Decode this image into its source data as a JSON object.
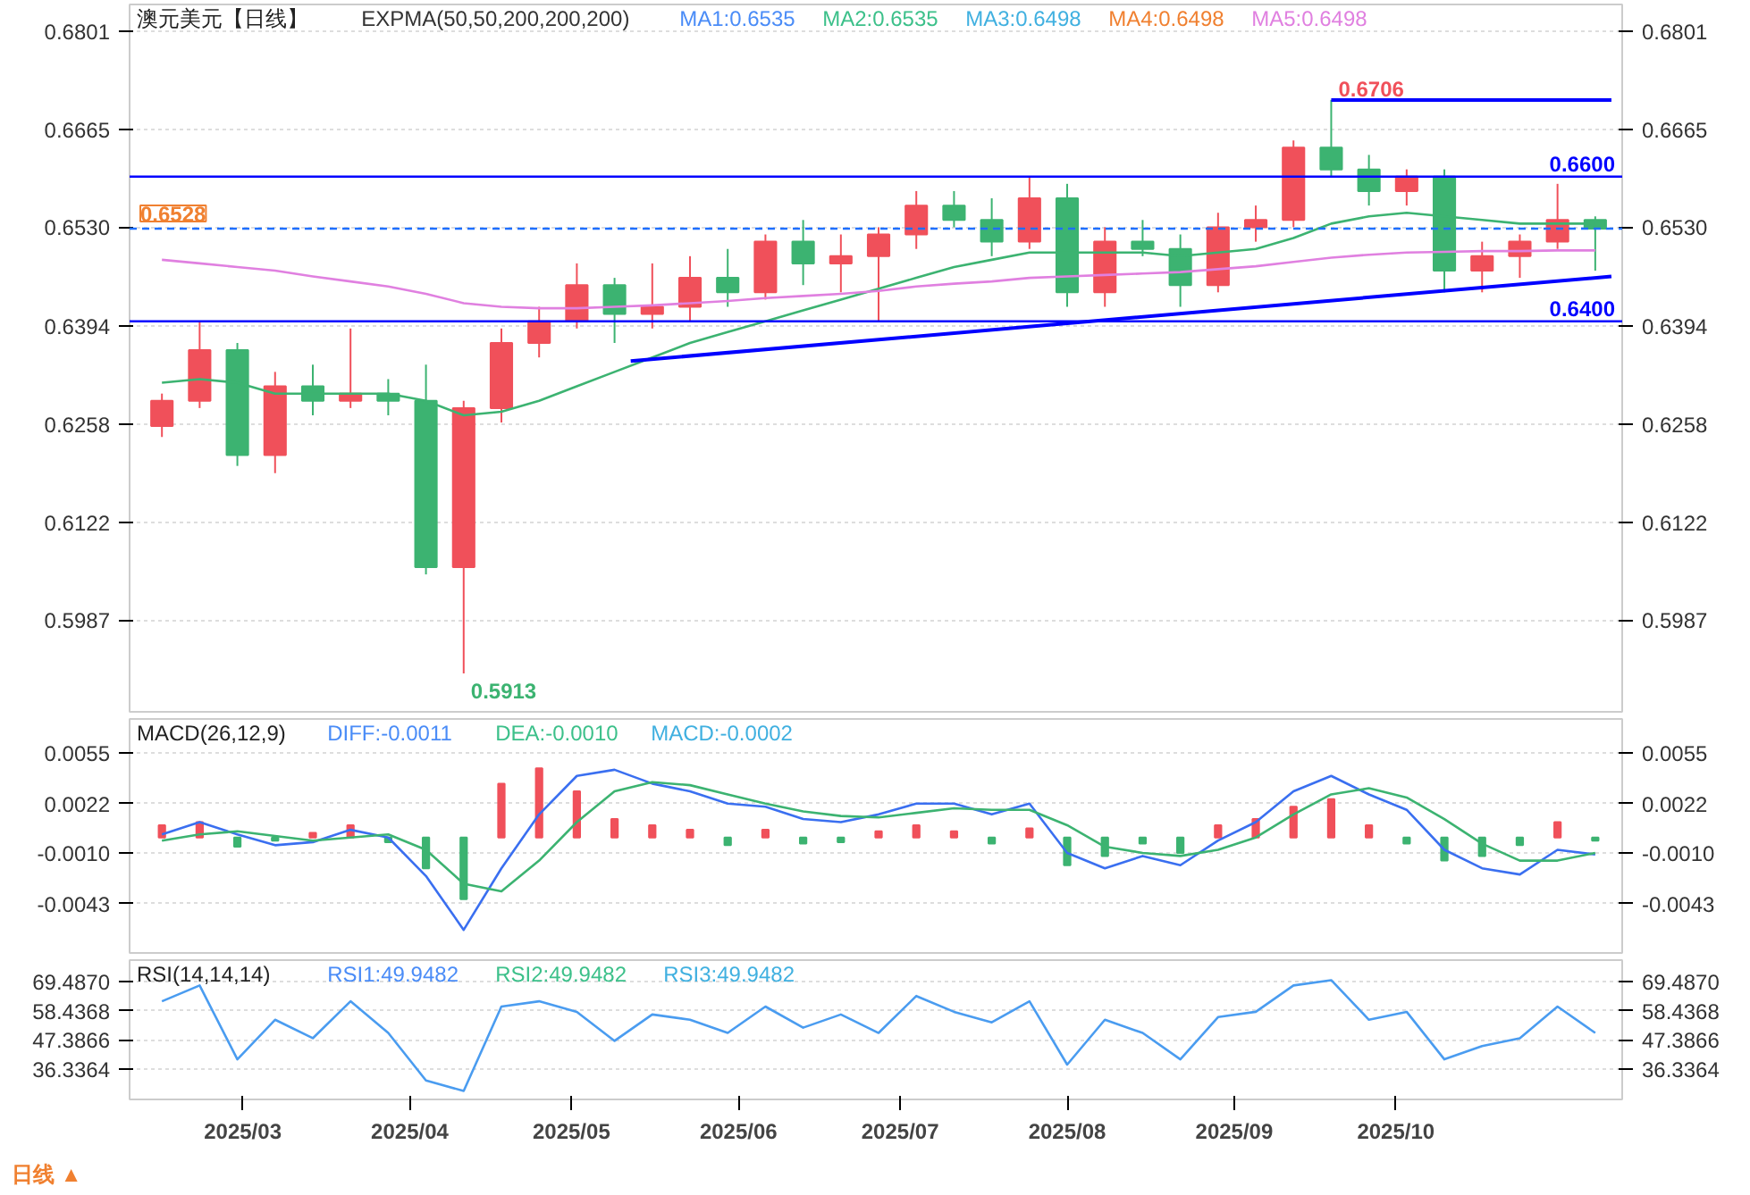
{
  "chart_data": [
    {
      "type": "candlestick",
      "title": "澳元美元【日线】",
      "annotations": [
        "EXPMA(50,50,200,200,200)",
        "MA1:0.6535",
        "MA2:0.6535",
        "MA3:0.6498",
        "MA4:0.6498",
        "MA5:0.6498",
        {
          "text": "0.6706",
          "x": "2025-09-19",
          "y": 0.6706
        },
        {
          "text": "0.5913",
          "x": "2025-04-11",
          "y": 0.5913
        }
      ],
      "x": [
        "2025-02-14",
        "2025-02-21",
        "2025-02-28",
        "2025-03-07",
        "2025-03-14",
        "2025-03-21",
        "2025-03-28",
        "2025-04-04",
        "2025-04-11",
        "2025-04-18",
        "2025-04-25",
        "2025-05-02",
        "2025-05-09",
        "2025-05-16",
        "2025-05-23",
        "2025-05-30",
        "2025-06-06",
        "2025-06-13",
        "2025-06-20",
        "2025-06-27",
        "2025-07-04",
        "2025-07-11",
        "2025-07-18",
        "2025-07-25",
        "2025-08-01",
        "2025-08-08",
        "2025-08-15",
        "2025-08-22",
        "2025-08-29",
        "2025-09-05",
        "2025-09-12",
        "2025-09-19",
        "2025-09-26",
        "2025-10-03",
        "2025-10-10",
        "2025-10-17",
        "2025-10-24",
        "2025-10-31",
        "2025-11-07"
      ],
      "ohlc": [
        [
          0.6255,
          0.63,
          0.624,
          0.629
        ],
        [
          0.629,
          0.64,
          0.628,
          0.636
        ],
        [
          0.636,
          0.637,
          0.62,
          0.6215
        ],
        [
          0.6215,
          0.633,
          0.619,
          0.631
        ],
        [
          0.631,
          0.634,
          0.627,
          0.629
        ],
        [
          0.629,
          0.639,
          0.628,
          0.63
        ],
        [
          0.63,
          0.632,
          0.627,
          0.629
        ],
        [
          0.629,
          0.634,
          0.605,
          0.606
        ],
        [
          0.606,
          0.629,
          0.5913,
          0.628
        ],
        [
          0.628,
          0.639,
          0.626,
          0.637
        ],
        [
          0.637,
          0.642,
          0.635,
          0.64
        ],
        [
          0.64,
          0.648,
          0.639,
          0.645
        ],
        [
          0.645,
          0.646,
          0.637,
          0.641
        ],
        [
          0.641,
          0.648,
          0.639,
          0.642
        ],
        [
          0.642,
          0.649,
          0.64,
          0.646
        ],
        [
          0.646,
          0.65,
          0.642,
          0.644
        ],
        [
          0.644,
          0.652,
          0.643,
          0.651
        ],
        [
          0.651,
          0.654,
          0.645,
          0.648
        ],
        [
          0.648,
          0.652,
          0.644,
          0.649
        ],
        [
          0.649,
          0.653,
          0.64,
          0.652
        ],
        [
          0.652,
          0.658,
          0.65,
          0.656
        ],
        [
          0.656,
          0.658,
          0.653,
          0.654
        ],
        [
          0.654,
          0.657,
          0.649,
          0.651
        ],
        [
          0.651,
          0.66,
          0.65,
          0.657
        ],
        [
          0.657,
          0.659,
          0.642,
          0.644
        ],
        [
          0.644,
          0.653,
          0.642,
          0.651
        ],
        [
          0.651,
          0.654,
          0.649,
          0.65
        ],
        [
          0.65,
          0.652,
          0.642,
          0.645
        ],
        [
          0.645,
          0.655,
          0.644,
          0.653
        ],
        [
          0.653,
          0.656,
          0.651,
          0.654
        ],
        [
          0.654,
          0.665,
          0.653,
          0.664
        ],
        [
          0.664,
          0.6706,
          0.66,
          0.661
        ],
        [
          0.661,
          0.663,
          0.656,
          0.658
        ],
        [
          0.658,
          0.661,
          0.656,
          0.66
        ],
        [
          0.66,
          0.661,
          0.644,
          0.647
        ],
        [
          0.647,
          0.651,
          0.644,
          0.649
        ],
        [
          0.649,
          0.652,
          0.646,
          0.651
        ],
        [
          0.651,
          0.659,
          0.65,
          0.654
        ],
        [
          0.654,
          0.6545,
          0.647,
          0.6528
        ]
      ],
      "series": [
        {
          "type": "line",
          "color": "#3cb371",
          "values": [
            0.6315,
            0.632,
            0.6315,
            0.63,
            0.63,
            0.63,
            0.63,
            0.629,
            0.627,
            0.6275,
            0.629,
            0.631,
            0.633,
            0.635,
            0.637,
            0.6385,
            0.64,
            0.6415,
            0.643,
            0.6445,
            0.646,
            0.6475,
            0.6485,
            0.6495,
            0.6495,
            0.6495,
            0.6495,
            0.649,
            0.6495,
            0.65,
            0.6515,
            0.6535,
            0.6545,
            0.655,
            0.6545,
            0.654,
            0.6535,
            0.6535,
            0.6535
          ]
        },
        {
          "type": "line",
          "color": "#e080e0",
          "values": [
            0.6485,
            0.648,
            0.6475,
            0.647,
            0.6462,
            0.6455,
            0.6448,
            0.6438,
            0.6425,
            0.642,
            0.6418,
            0.6418,
            0.642,
            0.6422,
            0.6425,
            0.6428,
            0.6432,
            0.6435,
            0.6438,
            0.6442,
            0.6448,
            0.6452,
            0.6455,
            0.646,
            0.6462,
            0.6464,
            0.6466,
            0.6468,
            0.6472,
            0.6476,
            0.6482,
            0.6488,
            0.6492,
            0.6495,
            0.6496,
            0.6497,
            0.6497,
            0.6498,
            0.6498
          ]
        },
        {
          "type": "line",
          "color": "#0000ff",
          "x": [
            "2025-05-12",
            "2025-11-10"
          ],
          "values": [
            0.6345,
            0.6462
          ]
        },
        {
          "type": "line",
          "color": "#0000ff",
          "x": [
            "2025-09-19",
            "2025-11-10"
          ],
          "values": [
            0.6706,
            0.6706
          ]
        }
      ],
      "ref_lines": [
        {
          "axis": "y",
          "value": 0.66,
          "label": "0.6600",
          "color": "#0000ff"
        },
        {
          "axis": "y",
          "value": 0.64,
          "label": "0.6400",
          "color": "#0000ff"
        },
        {
          "axis": "y",
          "value": 0.6528,
          "label": "0.6528",
          "color": "#1e6fff",
          "line_style": "dashed"
        }
      ],
      "xlim": [
        "2025-02-08",
        "2025-11-12"
      ],
      "ylim": [
        0.586,
        0.6838
      ],
      "yticks": [
        0.5987,
        0.6122,
        0.6258,
        0.6394,
        {
          "value": 0.653,
          "label": "0.6530"
        },
        0.6665,
        0.6801
      ],
      "y2lim": [
        0.586,
        0.6838
      ],
      "y2ticks": [
        0.5987,
        0.6122,
        0.6258,
        0.6394,
        {
          "value": 0.653,
          "label": "0.6530"
        },
        0.6665,
        0.6801
      ],
      "grid": "y",
      "tick_labels": "y"
    },
    {
      "type": "bar",
      "title": "MACD(26,12,9)",
      "annotations": [
        "DIFF:-0.0011",
        "DEA:-0.0010",
        "MACD:-0.0002"
      ],
      "x": [
        "2025-02-14",
        "2025-02-21",
        "2025-02-28",
        "2025-03-07",
        "2025-03-14",
        "2025-03-21",
        "2025-03-28",
        "2025-04-04",
        "2025-04-11",
        "2025-04-18",
        "2025-04-25",
        "2025-05-02",
        "2025-05-09",
        "2025-05-16",
        "2025-05-23",
        "2025-05-30",
        "2025-06-06",
        "2025-06-13",
        "2025-06-20",
        "2025-06-27",
        "2025-07-04",
        "2025-07-11",
        "2025-07-18",
        "2025-07-25",
        "2025-08-01",
        "2025-08-08",
        "2025-08-15",
        "2025-08-22",
        "2025-08-29",
        "2025-09-05",
        "2025-09-12",
        "2025-09-19",
        "2025-09-26",
        "2025-10-03",
        "2025-10-10",
        "2025-10-17",
        "2025-10-24",
        "2025-10-31",
        "2025-11-07"
      ],
      "series": [
        {
          "type": "bar",
          "colors": [
            "#f0505a",
            "#f0505a",
            "#3cb371",
            "#3cb371",
            "#f0505a",
            "#f0505a",
            "#3cb371",
            "#3cb371",
            "#3cb371",
            "#f0505a",
            "#f0505a",
            "#f0505a",
            "#f0505a",
            "#f0505a",
            "#f0505a",
            "#3cb371",
            "#f0505a",
            "#3cb371",
            "#3cb371",
            "#f0505a",
            "#f0505a",
            "#f0505a",
            "#3cb371",
            "#f0505a",
            "#3cb371",
            "#3cb371",
            "#3cb371",
            "#3cb371",
            "#f0505a",
            "#f0505a",
            "#f0505a",
            "#f0505a",
            "#f0505a",
            "#3cb371",
            "#3cb371",
            "#3cb371",
            "#3cb371",
            "#f0505a",
            "#3cb371"
          ],
          "values": [
            0.0008,
            0.001,
            -0.0006,
            -0.0002,
            0.0003,
            0.0008,
            -0.0003,
            -0.002,
            -0.004,
            0.0035,
            0.0045,
            0.003,
            0.0012,
            0.0008,
            0.0005,
            -0.0005,
            0.0005,
            -0.0004,
            -0.0003,
            0.0004,
            0.0008,
            0.0004,
            -0.0004,
            0.0006,
            -0.0018,
            -0.0012,
            -0.0004,
            -0.001,
            0.0008,
            0.0012,
            0.002,
            0.0025,
            0.0008,
            -0.0004,
            -0.0015,
            -0.0012,
            -0.0005,
            0.001,
            -0.0002
          ]
        },
        {
          "type": "line",
          "color": "#3a6ff0",
          "values": [
            0.0002,
            0.001,
            0.0002,
            -0.0005,
            -0.0003,
            0.0005,
            0.0,
            -0.0025,
            -0.006,
            -0.002,
            0.0015,
            0.004,
            0.0044,
            0.0035,
            0.003,
            0.0022,
            0.002,
            0.0012,
            0.001,
            0.0015,
            0.0022,
            0.0022,
            0.0015,
            0.0022,
            -0.001,
            -0.002,
            -0.0012,
            -0.0018,
            -0.0002,
            0.001,
            0.003,
            0.004,
            0.0028,
            0.0018,
            -0.0008,
            -0.002,
            -0.0024,
            -0.0008,
            -0.0011
          ]
        },
        {
          "type": "line",
          "color": "#3cb371",
          "values": [
            -0.0002,
            0.0002,
            0.0004,
            0.0001,
            -0.0002,
            0.0,
            0.0002,
            -0.0008,
            -0.003,
            -0.0035,
            -0.0015,
            0.001,
            0.003,
            0.0036,
            0.0034,
            0.0028,
            0.0022,
            0.0017,
            0.0014,
            0.0013,
            0.0016,
            0.0019,
            0.0018,
            0.0018,
            0.0008,
            -0.0006,
            -0.001,
            -0.0012,
            -0.0008,
            0.0,
            0.0015,
            0.0028,
            0.0032,
            0.0026,
            0.0012,
            -0.0004,
            -0.0015,
            -0.0015,
            -0.001
          ]
        }
      ],
      "xlim": [
        "2025-02-08",
        "2025-11-12"
      ],
      "ylim": [
        -0.0075,
        0.0077
      ],
      "yticks": [
        -0.0043,
        {
          "value": -0.001,
          "label": "-0.0010"
        },
        0.0022,
        0.0055
      ],
      "y2lim": [
        -0.0075,
        0.0077
      ],
      "y2ticks": [
        -0.0043,
        {
          "value": -0.001,
          "label": "-0.0010"
        },
        0.0022,
        0.0055
      ],
      "grid": "y",
      "tick_labels": "y"
    },
    {
      "type": "line",
      "title": "RSI(14,14,14)",
      "annotations": [
        "RSI1:49.9482",
        "RSI2:49.9482",
        "RSI3:49.9482",
        "日线 ▲"
      ],
      "x": [
        "2025-02-14",
        "2025-02-21",
        "2025-02-28",
        "2025-03-07",
        "2025-03-14",
        "2025-03-21",
        "2025-03-28",
        "2025-04-04",
        "2025-04-11",
        "2025-04-18",
        "2025-04-25",
        "2025-05-02",
        "2025-05-09",
        "2025-05-16",
        "2025-05-23",
        "2025-05-30",
        "2025-06-06",
        "2025-06-13",
        "2025-06-20",
        "2025-06-27",
        "2025-07-04",
        "2025-07-11",
        "2025-07-18",
        "2025-07-25",
        "2025-08-01",
        "2025-08-08",
        "2025-08-15",
        "2025-08-22",
        "2025-08-29",
        "2025-09-05",
        "2025-09-12",
        "2025-09-19",
        "2025-09-26",
        "2025-10-03",
        "2025-10-10",
        "2025-10-17",
        "2025-10-24",
        "2025-10-31",
        "2025-11-07"
      ],
      "series": [
        {
          "type": "line",
          "color": "#4a9cf0",
          "values": [
            62,
            68,
            40,
            55,
            48,
            62,
            50,
            32,
            28,
            60,
            62,
            58,
            47,
            57,
            55,
            50,
            60,
            52,
            57,
            50,
            64,
            58,
            54,
            62,
            38,
            55,
            50,
            40,
            56,
            58,
            68,
            70,
            55,
            58,
            40,
            45,
            48,
            60,
            50
          ]
        }
      ],
      "xlim": [
        "2025-02-08",
        "2025-11-12"
      ],
      "xticks": [
        {
          "value": "2025-03-01",
          "label": "2025/03"
        },
        {
          "value": "2025-04-01",
          "label": "2025/04"
        },
        {
          "value": "2025-05-01",
          "label": "2025/05"
        },
        {
          "value": "2025-06-01",
          "label": "2025/06"
        },
        {
          "value": "2025-07-01",
          "label": "2025/07"
        },
        {
          "value": "2025-08-01",
          "label": "2025/08"
        },
        {
          "value": "2025-09-01",
          "label": "2025/09"
        },
        {
          "value": "2025-10-01",
          "label": "2025/10"
        }
      ],
      "ylim": [
        24.8,
        77.6
      ],
      "yticks": [
        36.3364,
        47.3866,
        58.4368,
        {
          "value": 69.487,
          "label": "69.4870"
        }
      ],
      "y2lim": [
        24.8,
        77.6
      ],
      "y2ticks": [
        36.3364,
        47.3866,
        58.4368,
        {
          "value": 69.487,
          "label": "69.4870"
        }
      ],
      "grid": "y"
    }
  ]
}
